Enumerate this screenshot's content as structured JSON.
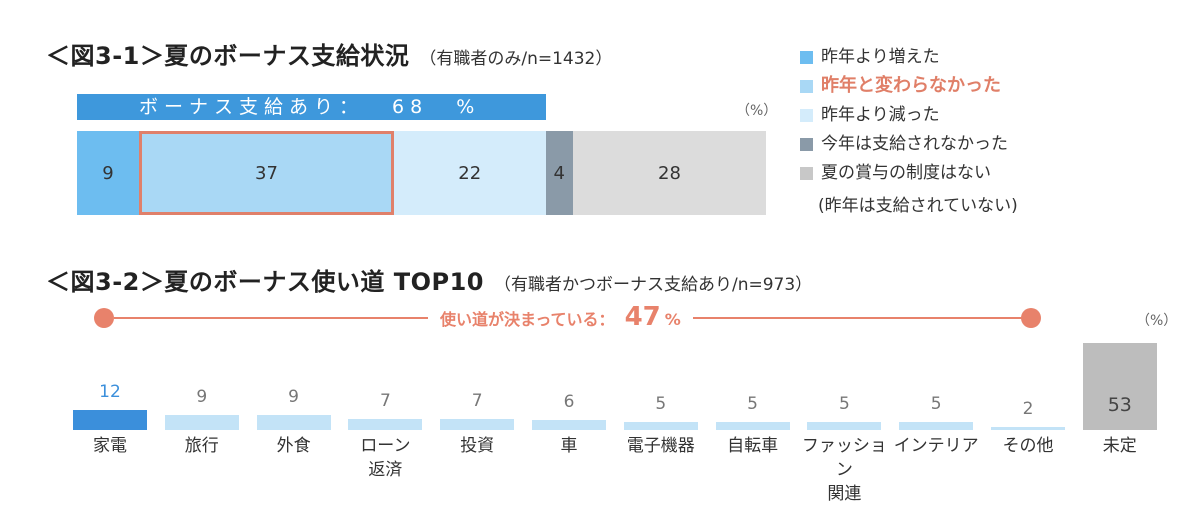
{
  "chart1": {
    "title": "＜図3-1＞夏のボーナス支給状況",
    "subtitle": "（有職者のみ/n=1432）",
    "unit_label": "（%）",
    "support_label": "ボーナス支給あり：",
    "support_value": "68",
    "support_unit": "%",
    "legend": [
      {
        "label": "昨年より増えた",
        "color": "#6dbdf0"
      },
      {
        "label": "昨年と変わらなかった",
        "color": "#a9d8f5"
      },
      {
        "label": "昨年より減った",
        "color": "#d4ecfb"
      },
      {
        "label": "今年は支給されなかった",
        "color": "#8a9aa8"
      },
      {
        "label": "夏の賞与の制度はない",
        "color": "#c8c8c8"
      }
    ],
    "legend_note": "(昨年は支給されていない)"
  },
  "chart2": {
    "title": "＜図3-2＞夏のボーナス使い道 TOP10",
    "subtitle": "（有職者かつボーナス支給あり/n=973）",
    "unit_label": "（%）",
    "decided_label": "使い道が決まっている：",
    "decided_value": "47",
    "decided_unit": "%"
  },
  "chart_data": [
    {
      "type": "bar",
      "orientation": "horizontal-stacked",
      "title": "＜図3-1＞夏のボーナス支給状況",
      "categories": [
        "昨年より増えた",
        "昨年と変わらなかった",
        "昨年より減った",
        "今年は支給されなかった",
        "夏の賞与の制度はない"
      ],
      "values": [
        9,
        37,
        22,
        4,
        28
      ],
      "colors": [
        "#6dbdf0",
        "#a9d8f5",
        "#d4ecfb",
        "#8a9aa8",
        "#dcdcdc"
      ],
      "highlight_index": 1,
      "legend_position": "right",
      "grid": false
    },
    {
      "type": "bar",
      "title": "＜図3-2＞夏のボーナス使い道 TOP10",
      "categories": [
        "家電",
        "旅行",
        "外食",
        "ローン\n返済",
        "投資",
        "車",
        "電子機器",
        "自転車",
        "ファッション\n関連",
        "インテリア",
        "その他",
        "未定"
      ],
      "values": [
        12,
        9,
        9,
        7,
        7,
        6,
        5,
        5,
        5,
        5,
        2,
        53
      ],
      "display_values": [
        12,
        9,
        9,
        7,
        7,
        6,
        5,
        5,
        5,
        5,
        2,
        53
      ],
      "colors": [
        "#3b8fdb",
        "#c3e3f7",
        "#c3e3f7",
        "#c3e3f7",
        "#c3e3f7",
        "#c3e3f7",
        "#c3e3f7",
        "#c3e3f7",
        "#c3e3f7",
        "#c3e3f7",
        "#c3e3f7",
        "#bdbdbd"
      ],
      "ylim": [
        0,
        53
      ],
      "grid": false
    }
  ]
}
